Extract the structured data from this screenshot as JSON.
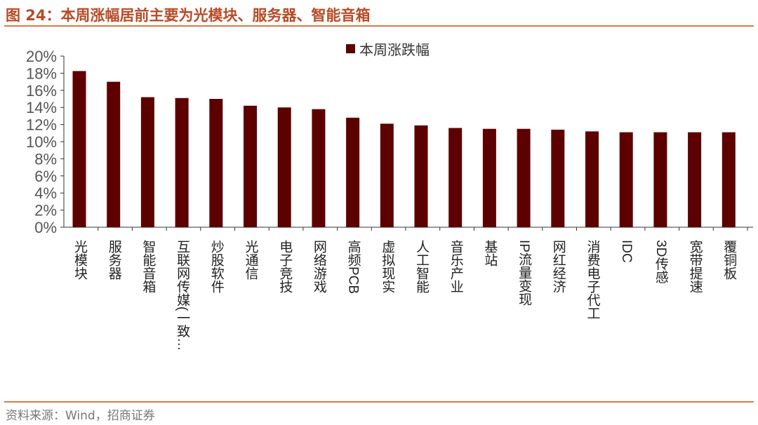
{
  "title": "图 24：本周涨幅居前主要为光模块、服务器、智能音箱",
  "source": "资料来源：Wind，招商证券",
  "chart_data": {
    "type": "bar",
    "title": "",
    "categories": [
      "光模块",
      "服务器",
      "智能音箱",
      "互联网传媒(一致…",
      "炒股软件",
      "光通信",
      "电子竞技",
      "网络游戏",
      "高频PCB",
      "虚拟现实",
      "人工智能",
      "音乐产业",
      "基站",
      "IP流量变现",
      "网红经济",
      "消费电子代工",
      "IDC",
      "3D传感",
      "宽带提速",
      "覆铜板"
    ],
    "series": [
      {
        "name": "本周涨跌幅",
        "color": "#5c0000",
        "values": [
          18.25,
          17.0,
          15.2,
          15.1,
          15.0,
          14.2,
          14.0,
          13.8,
          12.8,
          12.1,
          11.9,
          11.6,
          11.5,
          11.5,
          11.4,
          11.2,
          11.1,
          11.1,
          11.1,
          11.1
        ]
      }
    ],
    "ylim": [
      0,
      20
    ],
    "yticks": [
      "0%",
      "2%",
      "4%",
      "6%",
      "8%",
      "10%",
      "12%",
      "14%",
      "16%",
      "18%",
      "20%"
    ],
    "legend": "top-center",
    "grid": false
  }
}
